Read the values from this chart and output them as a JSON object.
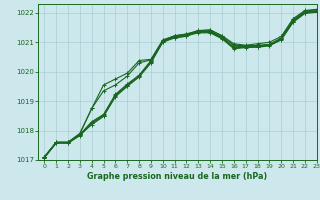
{
  "xlabel": "Graphe pression niveau de la mer (hPa)",
  "xlim": [
    -0.5,
    23
  ],
  "ylim": [
    1017,
    1022.3
  ],
  "yticks": [
    1017,
    1018,
    1019,
    1020,
    1021,
    1022
  ],
  "xticks": [
    0,
    1,
    2,
    3,
    4,
    5,
    6,
    7,
    8,
    9,
    10,
    11,
    12,
    13,
    14,
    15,
    16,
    17,
    18,
    19,
    20,
    21,
    22,
    23
  ],
  "bg_color": "#cce8ec",
  "grid_color": "#aacfd5",
  "line_color": "#1a6620",
  "lines": [
    [
      1017.1,
      1017.6,
      1017.6,
      1017.85,
      1018.2,
      1018.48,
      1019.15,
      1019.5,
      1019.82,
      1020.3,
      1021.0,
      1021.15,
      1021.22,
      1021.32,
      1021.32,
      1021.12,
      1020.78,
      1020.82,
      1020.83,
      1020.88,
      1021.08,
      1021.68,
      1021.98,
      1022.02
    ],
    [
      1017.08,
      1017.57,
      1017.57,
      1017.83,
      1018.25,
      1018.5,
      1019.18,
      1019.53,
      1019.84,
      1020.33,
      1021.02,
      1021.18,
      1021.24,
      1021.34,
      1021.34,
      1021.14,
      1020.8,
      1020.84,
      1020.85,
      1020.9,
      1021.1,
      1021.7,
      1022.0,
      1022.04
    ],
    [
      1017.07,
      1017.58,
      1017.58,
      1017.84,
      1018.27,
      1018.52,
      1019.2,
      1019.55,
      1019.86,
      1020.35,
      1021.03,
      1021.2,
      1021.26,
      1021.36,
      1021.36,
      1021.16,
      1020.82,
      1020.86,
      1020.87,
      1020.91,
      1021.11,
      1021.72,
      1022.01,
      1022.05
    ],
    [
      1017.1,
      1017.6,
      1017.6,
      1017.87,
      1018.3,
      1018.55,
      1019.23,
      1019.58,
      1019.88,
      1020.38,
      1021.06,
      1021.22,
      1021.28,
      1021.38,
      1021.38,
      1021.18,
      1020.84,
      1020.88,
      1020.89,
      1020.93,
      1021.13,
      1021.74,
      1022.03,
      1022.07
    ],
    [
      1017.1,
      1017.6,
      1017.6,
      1017.9,
      1018.75,
      1019.35,
      1019.55,
      1019.85,
      1020.3,
      1020.4,
      1021.05,
      1021.15,
      1021.2,
      1021.38,
      1021.42,
      1021.22,
      1020.95,
      1020.9,
      1020.95,
      1021.0,
      1021.2,
      1021.8,
      1022.08,
      1022.12
    ]
  ],
  "arc_line": [
    1017.1,
    1017.6,
    1017.6,
    1017.9,
    1018.75,
    1019.55,
    1019.75,
    1019.95,
    1020.38,
    1020.42,
    1021.08,
    1021.22,
    1021.28,
    1021.4,
    1021.42,
    1021.22,
    1020.9,
    1020.88,
    1020.88,
    1020.92,
    1021.15,
    1021.78,
    1022.06,
    1022.1
  ],
  "lw": 0.8,
  "ms": 2.5
}
